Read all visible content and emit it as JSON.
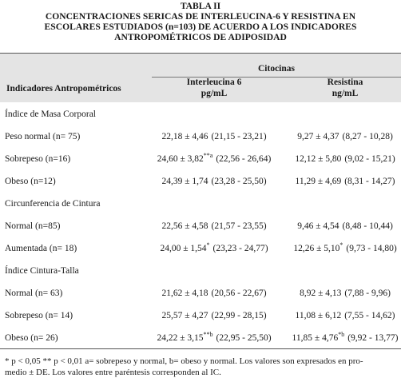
{
  "title_lines": [
    "TABLA II",
    "CONCENTRACIONES SERICAS DE INTERLEUCINA-6 Y RESISTINA EN",
    "ESCOLARES ESTUDIADOS (n=103) DE ACUERDO A LOS INDICADORES",
    "ANTROPOMÉTRICOS DE ADIPOSIDAD"
  ],
  "header": {
    "group": "Citocinas",
    "row_label": "Indicadores Antropométricos",
    "columns": [
      {
        "name": "Interleucina 6",
        "unit": "pg/mL"
      },
      {
        "name": "Resistina",
        "unit": "ng/mL"
      }
    ]
  },
  "sections": [
    {
      "title": "Índice de Masa Corporal",
      "rows": [
        {
          "label": "Peso normal (n= 75)",
          "cells": [
            {
              "value": "22,18 ± 4,46",
              "range": "(21,15 - 23,21)"
            },
            {
              "value": "9,27 ± 4,37",
              "range": "(8,27 - 10,28)"
            }
          ]
        },
        {
          "label": "Sobrepeso (n=16)",
          "cells": [
            {
              "value": "24,60 ± 3,82",
              "sup": "**a",
              "range": "(22,56 - 26,64)"
            },
            {
              "value": "12,12 ± 5,80",
              "range": "(9,02 - 15,21)"
            }
          ]
        },
        {
          "label": "Obeso (n=12)",
          "cells": [
            {
              "value": "24,39 ± 1,74",
              "range": "(23,28 - 25,50)"
            },
            {
              "value": "11,29 ± 4,69",
              "range": "(8,31 - 14,27)"
            }
          ]
        }
      ]
    },
    {
      "title": "Circunferencia de Cintura",
      "rows": [
        {
          "label": "Normal (n=85)",
          "cells": [
            {
              "value": "22,56 ± 4,58",
              "range": "(21,57 - 23,55)"
            },
            {
              "value": "9,46 ± 4,54",
              "range": "(8,48 - 10,44)"
            }
          ]
        },
        {
          "label": "Aumentada (n= 18)",
          "cells": [
            {
              "value": "24,00 ± 1,54",
              "sup": "*",
              "range": "(23,23 - 24,77)"
            },
            {
              "value": "12,26 ± 5,10",
              "sup": "*",
              "range": "(9,73 - 14,80)"
            }
          ]
        }
      ]
    },
    {
      "title": "Índice Cintura-Talla",
      "rows": [
        {
          "label": "Normal (n= 63)",
          "cells": [
            {
              "value": "21,62 ± 4,18",
              "range": "(20,56 - 22,67)"
            },
            {
              "value": "8,92 ± 4,13",
              "range": "(7,88 - 9,96)"
            }
          ]
        },
        {
          "label": "Sobrepeso (n= 14)",
          "cells": [
            {
              "value": "25,57 ± 4,27",
              "range": "(22,99 - 28,15)"
            },
            {
              "value": "11,08 ± 6,12",
              "range": "(7,55 - 14,62)"
            }
          ]
        },
        {
          "label": "Obeso (n= 26)",
          "cells": [
            {
              "value": "24,22 ± 3,15",
              "sup": "**b",
              "range": "(22,95 - 25,50)"
            },
            {
              "value": "11,85 ± 4,76",
              "sup": "*b",
              "range": "(9,92 - 13,77)"
            }
          ]
        }
      ]
    }
  ],
  "footnote_lines": [
    "* p < 0,05 ** p < 0,01 a= sobrepeso y normal, b= obeso y normal. Los valores son expresados en pro-",
    "medio ± DE. Los valores entre paréntesis corresponden al IC."
  ]
}
